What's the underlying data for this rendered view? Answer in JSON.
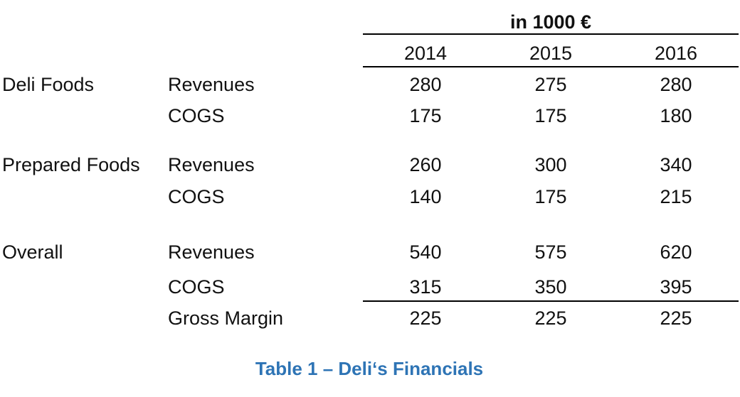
{
  "table": {
    "unit_label": "in 1000 €",
    "years": [
      "2014",
      "2015",
      "2016"
    ],
    "groups": [
      {
        "name": "Deli Foods",
        "rows": [
          {
            "label": "Revenues",
            "values": [
              "280",
              "275",
              "280"
            ]
          },
          {
            "label": "COGS",
            "values": [
              "175",
              "175",
              "180"
            ]
          }
        ]
      },
      {
        "name": "Prepared Foods",
        "rows": [
          {
            "label": "Revenues",
            "values": [
              "260",
              "300",
              "340"
            ]
          },
          {
            "label": "COGS",
            "values": [
              "140",
              "175",
              "215"
            ]
          }
        ]
      },
      {
        "name": "Overall",
        "rows": [
          {
            "label": "Revenues",
            "values": [
              "540",
              "575",
              "620"
            ]
          },
          {
            "label": "COGS",
            "values": [
              "315",
              "350",
              "395"
            ]
          },
          {
            "label": "Gross Margin",
            "values": [
              "225",
              "225",
              "225"
            ]
          }
        ]
      }
    ]
  },
  "caption": {
    "text": "Table 1 – Deli‘s Financials",
    "color": "#2E74B5"
  }
}
